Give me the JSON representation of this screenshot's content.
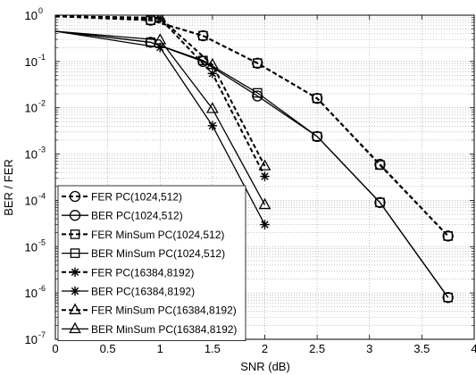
{
  "chart_data": {
    "type": "line",
    "xlabel": "SNR (dB)",
    "ylabel": "BER / FER",
    "xlim": [
      0,
      4
    ],
    "ylim": [
      1e-07,
      1
    ],
    "yscale": "log",
    "grid": true,
    "legend_position": "bottom-left",
    "x_ticks": [
      0,
      0.5,
      1,
      1.5,
      2,
      2.5,
      3,
      3.5,
      4
    ],
    "x_tick_labels": [
      "0",
      "0.5",
      "1",
      "1.5",
      "2",
      "2.5",
      "3",
      "3.5",
      "4"
    ],
    "y_ticks": [
      1,
      0.1,
      0.01,
      0.001,
      0.0001,
      1e-05,
      1e-06,
      1e-07
    ],
    "y_tick_labels": [
      {
        "base": "10",
        "exp": "0"
      },
      {
        "base": "10",
        "exp": "-1"
      },
      {
        "base": "10",
        "exp": "-2"
      },
      {
        "base": "10",
        "exp": "-3"
      },
      {
        "base": "10",
        "exp": "-4"
      },
      {
        "base": "10",
        "exp": "-5"
      },
      {
        "base": "10",
        "exp": "-6"
      },
      {
        "base": "10",
        "exp": "-7"
      }
    ],
    "series": [
      {
        "name": "FER PC(1024,512)",
        "marker": "circle",
        "dash": "dashed",
        "x": [
          0,
          0.91,
          1.41,
          1.93,
          2.5,
          3.1,
          3.75
        ],
        "y": [
          0.95,
          0.78,
          0.36,
          0.092,
          0.016,
          0.0006,
          1.7e-05
        ]
      },
      {
        "name": "BER PC(1024,512)",
        "marker": "circle",
        "dash": "solid",
        "x": [
          0,
          0.91,
          1.41,
          1.93,
          2.5,
          3.1,
          3.75
        ],
        "y": [
          0.45,
          0.26,
          0.1,
          0.018,
          0.0024,
          9e-05,
          8e-07
        ]
      },
      {
        "name": "FER MinSum PC(1024,512)",
        "marker": "square",
        "dash": "dashed",
        "x": [
          0,
          0.91,
          1.41,
          1.93,
          2.5,
          3.1,
          3.75
        ],
        "y": [
          0.95,
          0.78,
          0.36,
          0.092,
          0.016,
          0.00058,
          1.7e-05
        ]
      },
      {
        "name": "BER MinSum PC(1024,512)",
        "marker": "square",
        "dash": "solid",
        "x": [
          0,
          0.91,
          1.41,
          1.93,
          2.5,
          3.1,
          3.75
        ],
        "y": [
          0.45,
          0.26,
          0.105,
          0.021,
          0.0024,
          9e-05,
          8e-07
        ]
      },
      {
        "name": "FER PC(16384,8192)",
        "marker": "star",
        "dash": "dashed",
        "x": [
          0,
          1,
          1.5,
          2
        ],
        "y": [
          0.95,
          0.85,
          0.055,
          0.00033
        ]
      },
      {
        "name": "BER PC(16384,8192)",
        "marker": "star",
        "dash": "solid",
        "x": [
          0,
          1,
          1.5,
          2
        ],
        "y": [
          0.45,
          0.2,
          0.0041,
          3e-05
        ]
      },
      {
        "name": "FER MinSum PC(16384,8192)",
        "marker": "triangle",
        "dash": "dashed",
        "x": [
          0,
          1,
          1.5,
          2
        ],
        "y": [
          0.95,
          0.88,
          0.085,
          0.00055
        ]
      },
      {
        "name": "BER MinSum PC(16384,8192)",
        "marker": "triangle",
        "dash": "solid",
        "x": [
          0,
          1,
          1.5,
          2
        ],
        "y": [
          0.45,
          0.29,
          0.0095,
          8e-05
        ]
      }
    ]
  }
}
